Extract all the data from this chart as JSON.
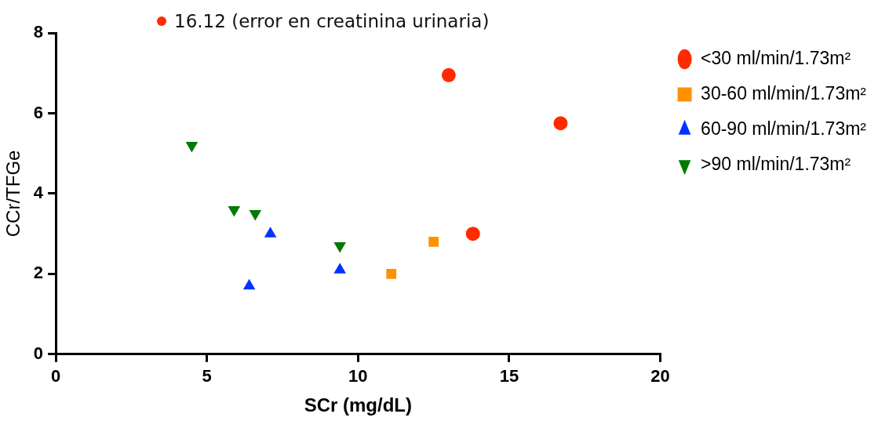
{
  "chart_data": {
    "type": "scatter",
    "xlabel": "SCr (mg/dL)",
    "ylabel": "CCr/TFGe",
    "annotations": [
      "16.12 (error en creatinina urinaria)"
    ],
    "xlim": [
      0,
      20
    ],
    "xticks": [
      0,
      5,
      10,
      15,
      20
    ],
    "ylim": [
      0,
      8
    ],
    "yticks": [
      0,
      2,
      4,
      6,
      8
    ],
    "grid": false,
    "legend": "right",
    "series": [
      {
        "name": "<30 ml/min/1.73m²",
        "color": "#ff2a00",
        "marker": "circle",
        "x": [
          13.0,
          16.7,
          13.8
        ],
        "values": [
          6.95,
          5.75,
          3.0
        ]
      },
      {
        "name": "30-60 ml/min/1.73m²",
        "color": "#ff9100",
        "marker": "square",
        "x": [
          11.1,
          12.5
        ],
        "values": [
          2.0,
          2.8
        ]
      },
      {
        "name": "60-90 ml/min/1.73m²",
        "color": "#0033ff",
        "marker": "triangle",
        "x": [
          6.4,
          7.1,
          9.4
        ],
        "values": [
          1.7,
          3.0,
          2.1
        ]
      },
      {
        "name": ">90 ml/min/1.73m²",
        "color": "#007a00",
        "marker": "triangle-down",
        "x": [
          4.5,
          5.9,
          6.6,
          9.4
        ],
        "values": [
          5.2,
          3.6,
          3.5,
          2.7
        ]
      }
    ]
  }
}
